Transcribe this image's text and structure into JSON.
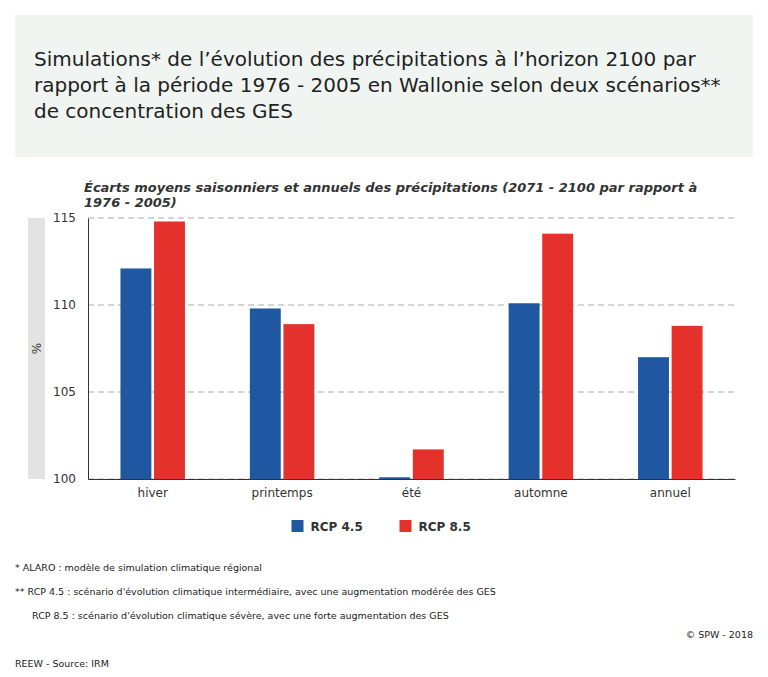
{
  "chart_data": {
    "type": "bar",
    "title": "Simulations* de l’évolution des précipitations à l’horizon 2100 par rapport à la période 1976 - 2005 en Wallonie selon deux scénarios** de concentration des GES",
    "subtitle": "Écarts moyens saisonniers et annuels des précipitations (2071 - 2100 par rapport à 1976 - 2005)",
    "y_label": "%",
    "categories": [
      "hiver",
      "printemps",
      "été",
      "automne",
      "annuel"
    ],
    "series": [
      {
        "name": "RCP 4.5",
        "color": "#1f57a0",
        "values": [
          112.1,
          109.8,
          100.1,
          110.1,
          107.0
        ]
      },
      {
        "name": "RCP 8.5",
        "color": "#e4312b",
        "values": [
          114.8,
          108.9,
          101.7,
          114.1,
          108.8
        ]
      }
    ],
    "ylim": [
      100,
      115
    ],
    "yticks": [
      100,
      105,
      110,
      115
    ],
    "grid": true,
    "legend": "bottom",
    "annotations": [
      "* ALARO : modèle de simulation climatique régional",
      "** RCP 4.5 : scénario d'évolution climatique intermédiaire, avec une augmentation modérée des GES",
      "RCP 8.5 : scénario d'évolution climatique  sévère, avec une forte augmentation des GES",
      "© SPW - 2018",
      "REEW - Source: IRM"
    ]
  }
}
